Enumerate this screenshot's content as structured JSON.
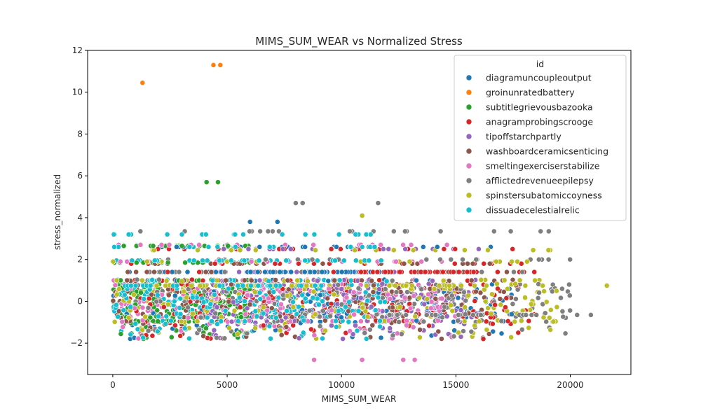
{
  "chart_data": {
    "type": "scatter",
    "title": "MIMS_SUM_WEAR vs Normalized Stress",
    "xlabel": "MIMS_SUM_WEAR",
    "ylabel": "stress_normalized",
    "xlim": [
      -1100,
      22650
    ],
    "ylim": [
      -3.5,
      12
    ],
    "xticks": [
      0,
      5000,
      10000,
      15000,
      20000
    ],
    "yticks": [
      -2,
      0,
      2,
      4,
      6,
      8,
      10,
      12
    ],
    "legend": {
      "title": "id",
      "placement": "top-right"
    },
    "grid": false,
    "series": [
      {
        "name": "diagramuncoupleoutput",
        "color": "#1f77b4"
      },
      {
        "name": "groinunratedbattery",
        "color": "#ff7f0e"
      },
      {
        "name": "subtitlegrievousbazooka",
        "color": "#2ca02c"
      },
      {
        "name": "anagramprobingscrooge",
        "color": "#d62728"
      },
      {
        "name": "tipoffstarchpartly",
        "color": "#9467bd"
      },
      {
        "name": "washboardceramicsenticing",
        "color": "#8c564b"
      },
      {
        "name": "smeltingexerciserstabilize",
        "color": "#e377c2"
      },
      {
        "name": "afflictedrevenueepilepsy",
        "color": "#7f7f7f"
      },
      {
        "name": "spinstersubatomiccoyness",
        "color": "#bcbd22"
      },
      {
        "name": "dissuadecelestialrelic",
        "color": "#17becf"
      }
    ],
    "highlight_points": [
      {
        "series": 1,
        "x": 1300,
        "y": 10.45
      },
      {
        "series": 1,
        "x": 4400,
        "y": 11.3
      },
      {
        "series": 1,
        "x": 4700,
        "y": 11.3
      },
      {
        "series": 2,
        "x": 4100,
        "y": 5.7
      },
      {
        "series": 2,
        "x": 4600,
        "y": 5.7
      },
      {
        "series": 0,
        "x": 6000,
        "y": 3.8
      },
      {
        "series": 0,
        "x": 7200,
        "y": 3.8
      },
      {
        "series": 7,
        "x": 8000,
        "y": 4.7
      },
      {
        "series": 7,
        "x": 8300,
        "y": 4.7
      },
      {
        "series": 7,
        "x": 11600,
        "y": 4.7
      },
      {
        "series": 8,
        "x": 10900,
        "y": 4.1
      },
      {
        "series": 6,
        "x": 8800,
        "y": -2.8
      },
      {
        "series": 6,
        "x": 10900,
        "y": -2.8
      },
      {
        "series": 6,
        "x": 12700,
        "y": -2.8
      },
      {
        "series": 6,
        "x": 13200,
        "y": -2.8
      },
      {
        "series": 3,
        "x": 16200,
        "y": -1.8
      },
      {
        "series": 7,
        "x": 20300,
        "y": -0.65
      },
      {
        "series": 7,
        "x": 20900,
        "y": -0.65
      },
      {
        "series": 8,
        "x": 21600,
        "y": 0.75
      },
      {
        "series": 8,
        "x": 19400,
        "y": 0.5
      }
    ]
  }
}
